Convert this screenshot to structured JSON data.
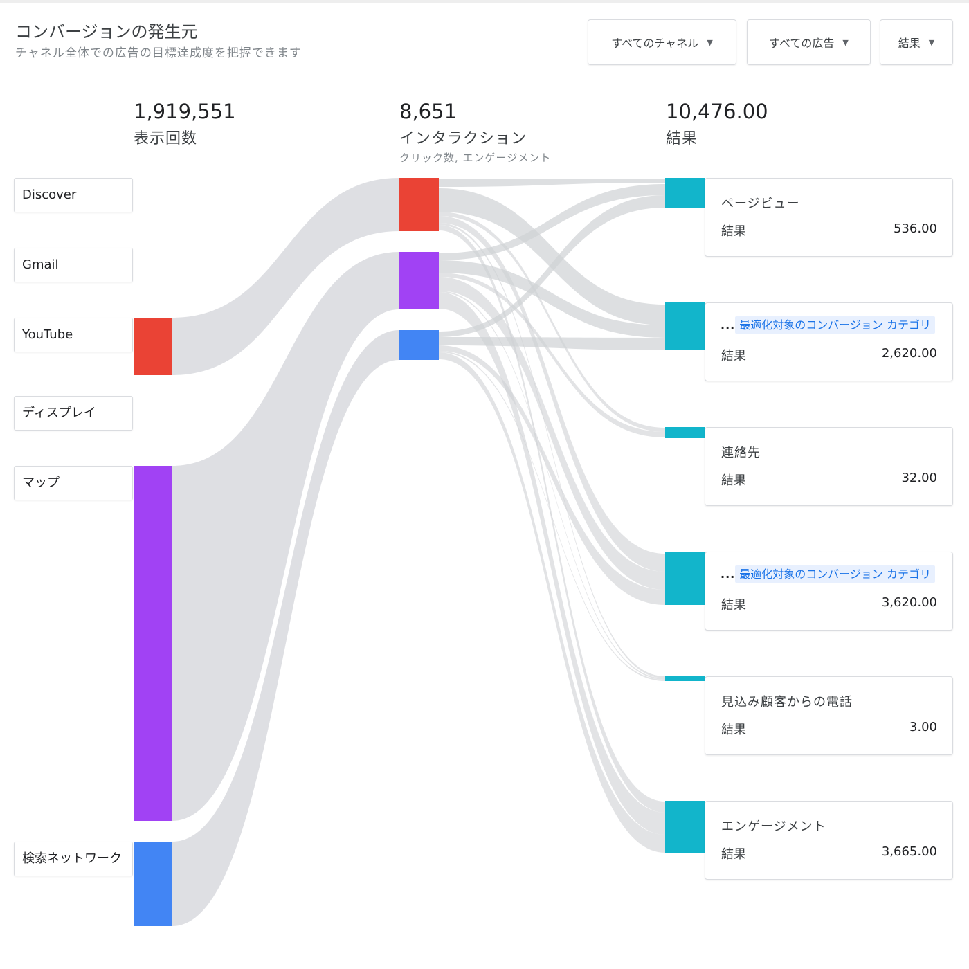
{
  "header": {
    "title": "コンバージョンの発生元",
    "subtitle": "チャネル全体での広告の目標達成度を把握できます"
  },
  "filters": [
    {
      "label": "すべてのチャネル"
    },
    {
      "label": "すべての広告"
    },
    {
      "label": "結果"
    }
  ],
  "columns": {
    "impressions": {
      "value": "1,919,551",
      "label": "表示回数"
    },
    "interactions": {
      "value": "8,651",
      "label": "インタラクション",
      "sublabel": "クリック数, エンゲージメント"
    },
    "results": {
      "value": "10,476.00",
      "label": "結果"
    }
  },
  "sources": [
    {
      "name": "Discover"
    },
    {
      "name": "Gmail"
    },
    {
      "name": "YouTube",
      "color": "#ea4335"
    },
    {
      "name": "ディスプレイ"
    },
    {
      "name": "マップ",
      "color": "#a142f4"
    },
    {
      "name": "検索ネットワーク",
      "color": "#4285f4"
    }
  ],
  "results": [
    {
      "name": "ページビュー",
      "label": "結果",
      "value": "536.00",
      "link": false
    },
    {
      "name": "最適化対象のコンバージョン カテゴリ",
      "prefix": "...",
      "label": "結果",
      "value": "2,620.00",
      "link": true
    },
    {
      "name": "連絡先",
      "label": "結果",
      "value": "32.00",
      "link": false
    },
    {
      "name": "最適化対象のコンバージョン カテゴリ",
      "prefix": "...",
      "label": "結果",
      "value": "3,620.00",
      "link": true
    },
    {
      "name": "見込み顧客からの電話",
      "label": "結果",
      "value": "3.00",
      "link": false
    },
    {
      "name": "エンゲージメント",
      "label": "結果",
      "value": "3,665.00",
      "link": true
    }
  ],
  "colors": {
    "youtube": "#ea4335",
    "maps": "#a142f4",
    "search": "#4285f4",
    "result": "#12b5cb",
    "flow": "#dadce0"
  }
}
